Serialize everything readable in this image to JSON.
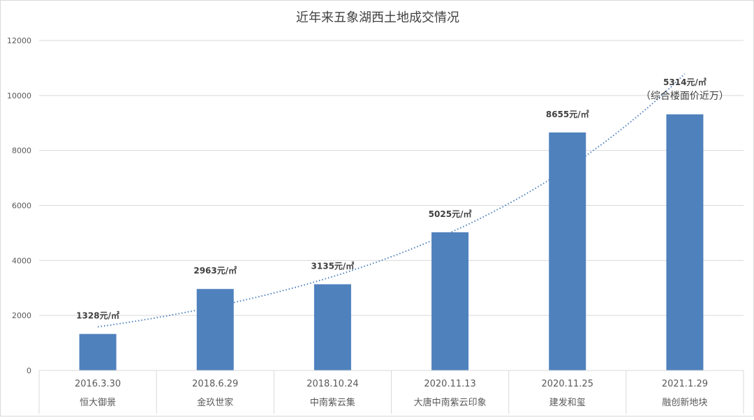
{
  "chart_data": {
    "type": "bar",
    "title": "近年来五象湖西土地成交情况",
    "categories": [
      {
        "date": "2016.3.30",
        "name": "恒大御景"
      },
      {
        "date": "2018.6.29",
        "name": "金玖世家"
      },
      {
        "date": "2018.10.24",
        "name": "中南紫云集"
      },
      {
        "date": "2020.11.13",
        "name": "大唐中南紫云印象"
      },
      {
        "date": "2020.11.25",
        "name": "建发和玺"
      },
      {
        "date": "2021.1.29",
        "name": "融创新地块"
      }
    ],
    "values": [
      1328,
      2963,
      3135,
      5025,
      8655,
      9314
    ],
    "data_labels": [
      [
        "1328元/㎡"
      ],
      [
        "2963元/㎡"
      ],
      [
        "3135元/㎡"
      ],
      [
        "5025元/㎡"
      ],
      [
        "8655元/㎡"
      ],
      [
        "5314元/㎡",
        "（综合楼面价近万）"
      ]
    ],
    "trendline": "exponential",
    "ylim": [
      0,
      12000
    ],
    "yticks": [
      0,
      2000,
      4000,
      6000,
      8000,
      10000,
      12000
    ],
    "grid": true,
    "legend": "none",
    "colors": {
      "bar": "#4f81bd",
      "trend": "#4f81bd",
      "grid": "#d9d9d9",
      "text": "#595959"
    }
  }
}
